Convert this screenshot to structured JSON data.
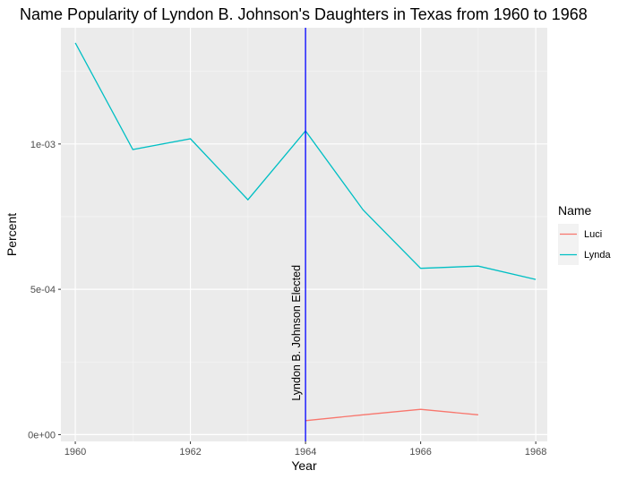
{
  "chart_data": {
    "type": "line",
    "title": "Name Popularity of Lyndon B. Johnson's Daughters in Texas from 1960 to 1968",
    "xlabel": "Year",
    "ylabel": "Percent",
    "xlim": [
      1959.75,
      1968.2
    ],
    "ylim": [
      -2.34e-05,
      0.0014
    ],
    "x_ticks": [
      1960,
      1962,
      1964,
      1966,
      1968
    ],
    "y_ticks": [
      0,
      0.0005,
      0.001
    ],
    "y_tick_labels": [
      "0e+00",
      "5e-04",
      "1e-03"
    ],
    "grid": true,
    "legend": {
      "title": "Name",
      "position": "right",
      "entries": [
        "Luci",
        "Lynda"
      ]
    },
    "series": [
      {
        "name": "Luci",
        "color": "#F8766D",
        "x": [
          1964,
          1965,
          1966,
          1967
        ],
        "y": [
          4.8e-05,
          6.8e-05,
          8.7e-05,
          6.8e-05
        ]
      },
      {
        "name": "Lynda",
        "color": "#00BFC4",
        "x": [
          1960,
          1961,
          1962,
          1963,
          1964,
          1965,
          1966,
          1967,
          1968
        ],
        "y": [
          0.001348,
          0.000981,
          0.001018,
          0.000808,
          0.001045,
          0.000773,
          0.000572,
          0.00058,
          0.000534
        ]
      }
    ],
    "vline": {
      "x": 1964,
      "color": "#0000FF",
      "label": "Lyndon B. Johnson Elected",
      "label_y": 0.00035
    }
  }
}
